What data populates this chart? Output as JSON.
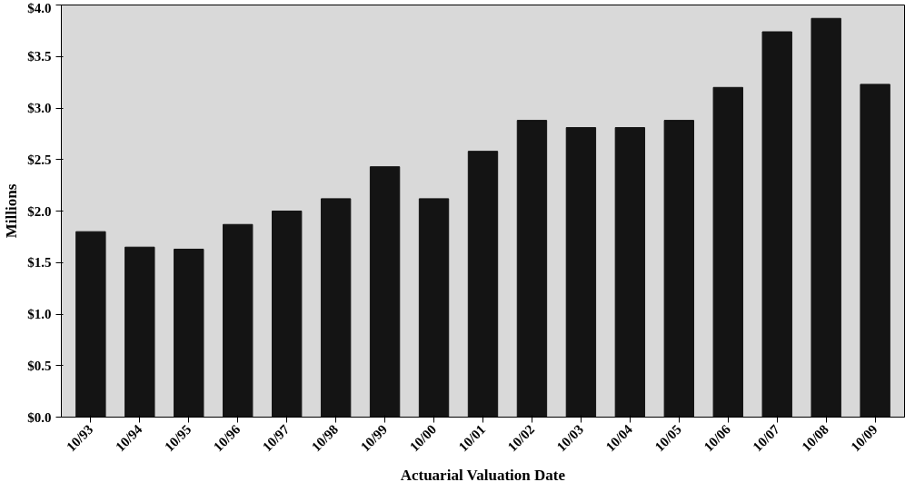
{
  "chart_data": {
    "type": "bar",
    "xlabel": "Actuarial Valuation Date",
    "ylabel": "Millions",
    "categories": [
      "10/93",
      "10/94",
      "10/95",
      "10/96",
      "10/97",
      "10/98",
      "10/99",
      "10/00",
      "10/01",
      "10/02",
      "10/03",
      "10/04",
      "10/05",
      "10/06",
      "10/07",
      "10/08",
      "10/09"
    ],
    "values": [
      1.8,
      1.65,
      1.63,
      1.87,
      2.0,
      2.12,
      2.43,
      2.12,
      2.58,
      2.88,
      2.81,
      2.81,
      2.88,
      3.2,
      3.74,
      3.87,
      3.23
    ],
    "color": "#141414",
    "ylim": [
      0,
      4.0
    ],
    "yticks": [
      {
        "value": 0,
        "label": "$0.0"
      },
      {
        "value": 0.5,
        "label": "$0.5"
      },
      {
        "value": 1.0,
        "label": "$1.0"
      },
      {
        "value": 1.5,
        "label": "$1.5"
      },
      {
        "value": 2.0,
        "label": "$2.0"
      },
      {
        "value": 2.5,
        "label": "$2.5"
      },
      {
        "value": 3.0,
        "label": "$3.0"
      },
      {
        "value": 3.5,
        "label": "$3.5"
      },
      {
        "value": 4.0,
        "label": "$4.0"
      }
    ],
    "grid": false
  }
}
